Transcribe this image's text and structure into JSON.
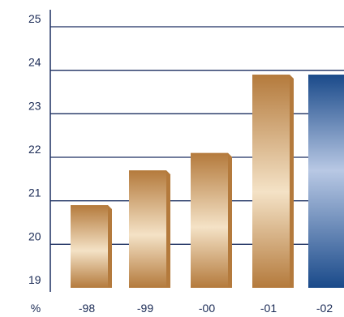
{
  "chart_data": {
    "type": "bar",
    "unit_label": "%",
    "categories": [
      "-98",
      "-99",
      "-00",
      "-01",
      "-02"
    ],
    "values": [
      20.9,
      21.7,
      22.1,
      23.9,
      23.9
    ],
    "highlight_index": 4,
    "yticks": [
      "19",
      "20",
      "21",
      "22",
      "23",
      "24",
      "25"
    ],
    "ylim": [
      19,
      25
    ],
    "grid": true,
    "colors": {
      "bar_edge": "#b47a3c",
      "bar_light": "#f4e2c6",
      "highlight_edge": "#1a4a8a",
      "highlight_light": "#b8c8e4",
      "grid": "#1c2f60",
      "text": "#1a2a55"
    }
  }
}
